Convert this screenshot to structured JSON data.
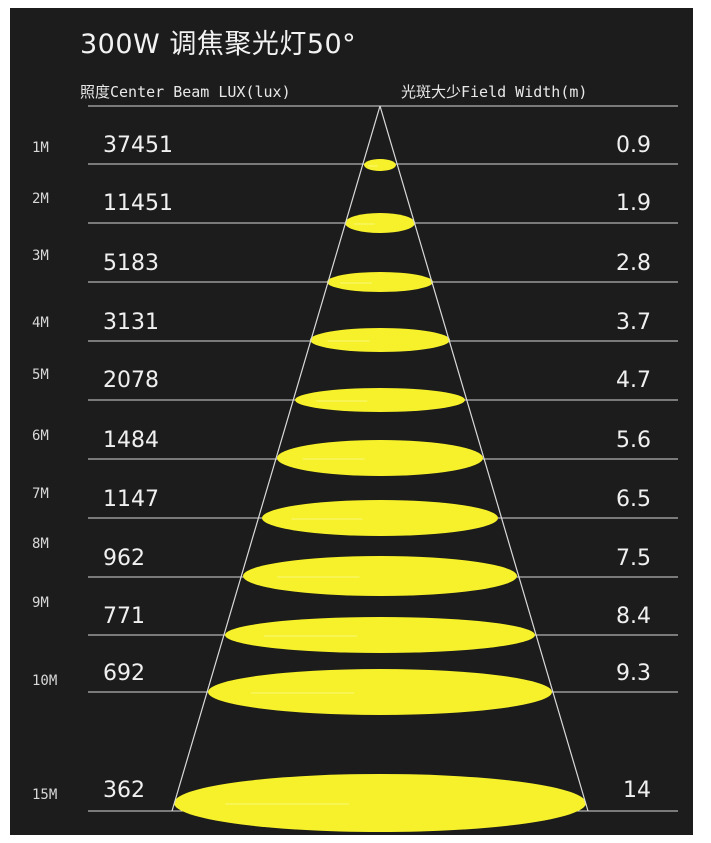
{
  "title": "300W 调焦聚光灯50°",
  "header": {
    "lux_label": "照度Center Beam LUX(lux)",
    "width_label": "光斑大少Field Width(m)"
  },
  "colors": {
    "background": "#1c1c1c",
    "beam_spot": "#f6f12a",
    "lines": "#d9d9d9",
    "text": "#f0f0f0"
  },
  "rows": [
    {
      "distance": "1M",
      "lux": "37451",
      "width": "0.9"
    },
    {
      "distance": "2M",
      "lux": "11451",
      "width": "1.9"
    },
    {
      "distance": "3M",
      "lux": "5183",
      "width": "2.8"
    },
    {
      "distance": "4M",
      "lux": "3131",
      "width": "3.7"
    },
    {
      "distance": "5M",
      "lux": "2078",
      "width": "4.7"
    },
    {
      "distance": "6M",
      "lux": "1484",
      "width": "5.6"
    },
    {
      "distance": "7M",
      "lux": "1147",
      "width": "6.5"
    },
    {
      "distance": "8M",
      "lux": "962",
      "width": "7.5"
    },
    {
      "distance": "9M",
      "lux": "771",
      "width": "8.4"
    },
    {
      "distance": "10M",
      "lux": "692",
      "width": "9.3"
    },
    {
      "distance": "15M",
      "lux": "362",
      "width": "14"
    }
  ]
}
